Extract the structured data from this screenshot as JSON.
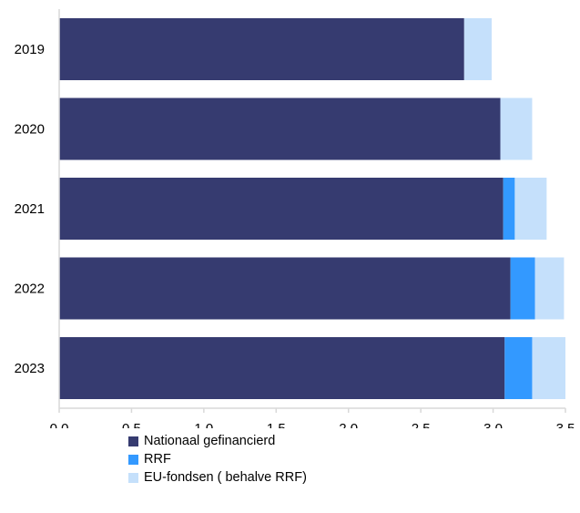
{
  "chart_data": {
    "type": "bar",
    "orientation": "horizontal",
    "stacked": true,
    "categories": [
      "2019",
      "2020",
      "2021",
      "2022",
      "2023"
    ],
    "series": [
      {
        "name": "Nationaal gefinancierd",
        "color": "#363b70",
        "values": [
          2.8,
          3.05,
          3.07,
          3.12,
          3.08
        ]
      },
      {
        "name": "RRF",
        "color": "#3399ff",
        "values": [
          0.0,
          0.0,
          0.08,
          0.17,
          0.19
        ]
      },
      {
        "name": "EU-fondsen ( behalve RRF)",
        "color": "#c5e0fb",
        "values": [
          0.19,
          0.22,
          0.22,
          0.2,
          0.23
        ]
      }
    ],
    "xlim": [
      0,
      3.5
    ],
    "xticks": [
      "0,0",
      "0,5",
      "1,0",
      "1,5",
      "2,0",
      "2,5",
      "3,0",
      "3,5"
    ],
    "grid": false,
    "legend_position": "bottom"
  }
}
